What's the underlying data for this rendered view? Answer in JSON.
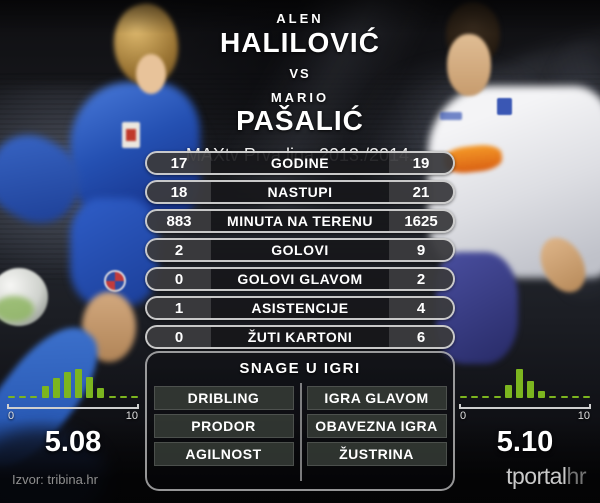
{
  "header": {
    "player1_first": "ALEN",
    "player1_last": "HALILOVIĆ",
    "vs": "VS",
    "player2_first": "MARIO",
    "player2_last": "PAŠALIĆ",
    "league": "MAXtv Prva liga 2013./2014."
  },
  "stats": {
    "rows": [
      {
        "left": "17",
        "label": "GODINE",
        "right": "19"
      },
      {
        "left": "18",
        "label": "NASTUPI",
        "right": "21"
      },
      {
        "left": "883",
        "label": "MINUTA NA TERENU",
        "right": "1625"
      },
      {
        "left": "2",
        "label": "GOLOVI",
        "right": "9"
      },
      {
        "left": "0",
        "label": "GOLOVI GLAVOM",
        "right": "2"
      },
      {
        "left": "1",
        "label": "ASISTENCIJE",
        "right": "4"
      },
      {
        "left": "0",
        "label": "ŽUTI KARTONI",
        "right": "6"
      }
    ]
  },
  "strengths": {
    "title": "SNAGE U IGRI",
    "left_items": [
      "DRIBLING",
      "PRODOR",
      "AGILNOST"
    ],
    "right_items": [
      "IGRA GLAVOM",
      "OBAVEZNA IGRA",
      "ŽUSTRINA"
    ]
  },
  "ratings": {
    "left": {
      "value": "5.08",
      "axis_min": "0",
      "axis_max": "10",
      "bars_pct": [
        5,
        5,
        5,
        42,
        68,
        90,
        100,
        72,
        36,
        5,
        5,
        5
      ]
    },
    "right": {
      "value": "5.10",
      "axis_min": "0",
      "axis_max": "10",
      "bars_pct": [
        5,
        5,
        5,
        5,
        45,
        100,
        60,
        24,
        5,
        5,
        5,
        5
      ]
    }
  },
  "footer": {
    "source": "Izvor: tribina.hr",
    "brand_main": "tportal",
    "brand_suffix": "hr"
  },
  "colors": {
    "bar_green": "#7cb51f",
    "pill_border": "#f0f0f0",
    "axis_gray": "#cfcfcf"
  },
  "chart_data": [
    {
      "type": "table",
      "title": "MAXtv Prva liga 2013./2014.",
      "columns": [
        "left_value",
        "label",
        "right_value"
      ],
      "rows": [
        [
          17,
          "GODINE",
          19
        ],
        [
          18,
          "NASTUPI",
          21
        ],
        [
          883,
          "MINUTA NA TERENU",
          1625
        ],
        [
          2,
          "GOLOVI",
          9
        ],
        [
          0,
          "GOLOVI GLAVOM",
          2
        ],
        [
          1,
          "ASISTENCIJE",
          4
        ],
        [
          0,
          "ŽUTI KARTONI",
          6
        ]
      ]
    },
    {
      "type": "bar",
      "position": "bottom-left",
      "title": "5.08",
      "xlabel": "",
      "ylabel": "",
      "x_axis": {
        "min": 0,
        "max": 10,
        "tick_labels": [
          "0",
          "10"
        ]
      },
      "values_relative": [
        0.05,
        0.05,
        0.05,
        0.42,
        0.68,
        0.9,
        1.0,
        0.72,
        0.36,
        0.05,
        0.05,
        0.05
      ],
      "grid": false,
      "legend": false
    },
    {
      "type": "bar",
      "position": "bottom-right",
      "title": "5.10",
      "xlabel": "",
      "ylabel": "",
      "x_axis": {
        "min": 0,
        "max": 10,
        "tick_labels": [
          "0",
          "10"
        ]
      },
      "values_relative": [
        0.05,
        0.05,
        0.05,
        0.05,
        0.45,
        1.0,
        0.6,
        0.24,
        0.05,
        0.05,
        0.05,
        0.05
      ],
      "grid": false,
      "legend": false
    }
  ]
}
